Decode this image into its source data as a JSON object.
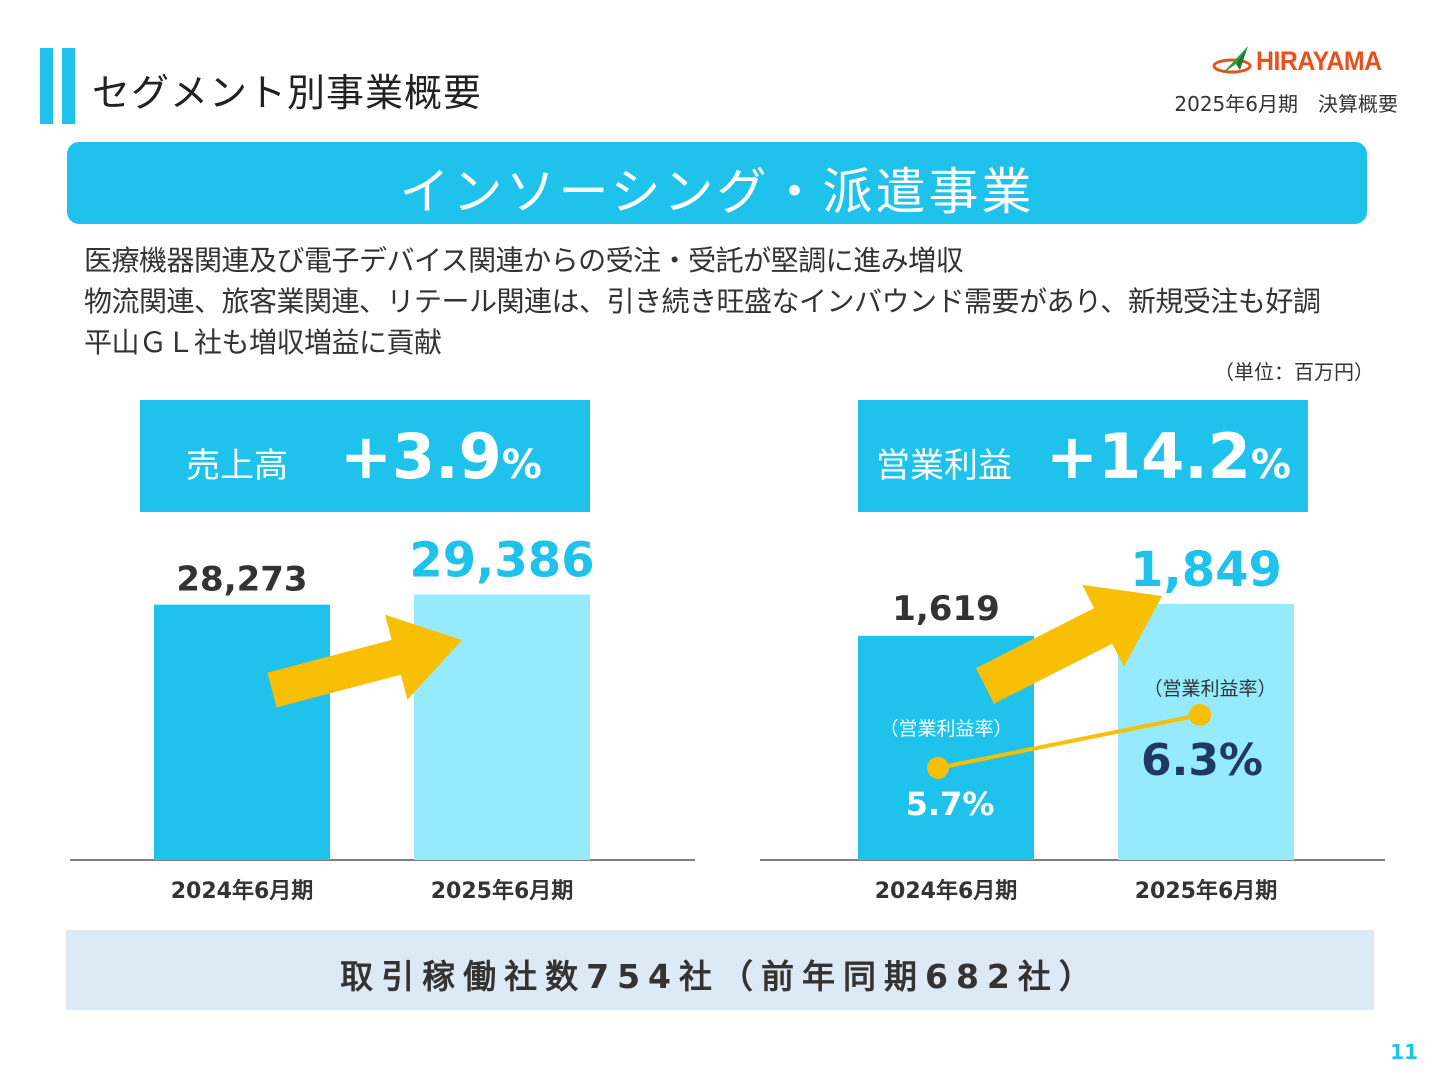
{
  "header": {
    "title": "セグメント別事業概要",
    "logo_text": "HIRAYAMA",
    "period": "2025年6月期　決算概要"
  },
  "banner": {
    "title": "インソーシング・派遣事業"
  },
  "bullets": [
    "医療機器関連及び電子デバイス関連からの受注・受託が堅調に進み増収",
    "物流関連、旅客業関連、リテール関連は、引き続き旺盛なインバウンド需要があり、新規受注も好調",
    "平山ＧＬ社も増収増益に貢献"
  ],
  "unit": "（単位：百万円）",
  "kpis": {
    "sales": {
      "label": "売上高",
      "change": "+3.9",
      "pct": "%"
    },
    "op": {
      "label": "営業利益",
      "change": "+14.2",
      "pct": "%"
    }
  },
  "chart_data": [
    {
      "type": "bar",
      "categories": [
        "2024年6月期",
        "2025年6月期"
      ],
      "values": [
        28273,
        29386
      ],
      "value_labels": [
        "28,273",
        "29,386"
      ],
      "ylim": [
        0,
        31000
      ],
      "colors": [
        "#1fc2ea",
        "#95eafb"
      ]
    },
    {
      "type": "bar",
      "categories": [
        "2024年6月期",
        "2025年6月期"
      ],
      "values": [
        1619,
        1849
      ],
      "value_labels": [
        "1,619",
        "1,849"
      ],
      "ylim": [
        0,
        1950
      ],
      "colors": [
        "#1fc2ea",
        "#95eafb"
      ],
      "overlay": {
        "type": "line",
        "label": "（営業利益率）",
        "values": [
          5.7,
          6.3
        ],
        "value_labels": [
          "5.7%",
          "6.3%"
        ],
        "color": "#f8bf05"
      }
    }
  ],
  "footer": {
    "text": "取引稼働社数754社（前年同期682社）"
  },
  "page_number": "11",
  "colors": {
    "accent": "#1fc2ea",
    "light": "#95eafb",
    "arrow": "#f8bf05",
    "navy": "#1f3864"
  }
}
